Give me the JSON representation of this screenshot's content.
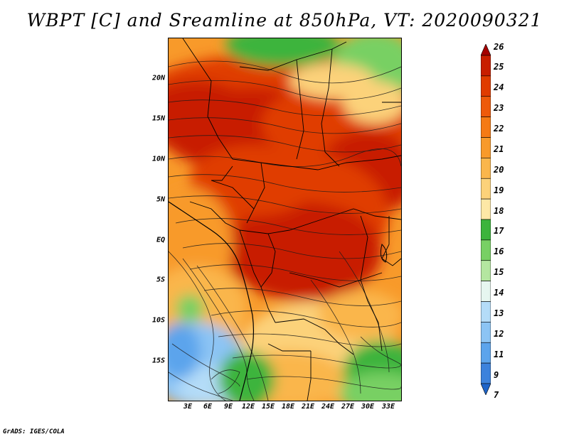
{
  "title": "WBPT [C] and Sreamline at 850hPa, VT: 2020090321",
  "credit": "GrADS: IGES/COLA",
  "lat_labels": [
    "20N",
    "15N",
    "10N",
    "5N",
    "EQ",
    "5S",
    "10S",
    "15S"
  ],
  "lon_labels": [
    "3E",
    "6E",
    "9E",
    "12E",
    "15E",
    "18E",
    "21E",
    "24E",
    "27E",
    "30E",
    "33E"
  ],
  "colorbar": {
    "labels": [
      "26",
      "25",
      "24",
      "23",
      "22",
      "21",
      "20",
      "19",
      "18",
      "17",
      "16",
      "15",
      "14",
      "13",
      "12",
      "11",
      "9",
      "7"
    ],
    "colors": [
      "#a50000",
      "#c81e00",
      "#e03c00",
      "#ee5a0a",
      "#f57a14",
      "#f89a2a",
      "#fab64c",
      "#fcd27a",
      "#fde8a6",
      "#3cb43c",
      "#78d064",
      "#b4e6a0",
      "#e6f6f0",
      "#b4dcf8",
      "#8cc4f4",
      "#5ca4ec",
      "#3c82dc",
      "#1e64c8"
    ]
  }
}
